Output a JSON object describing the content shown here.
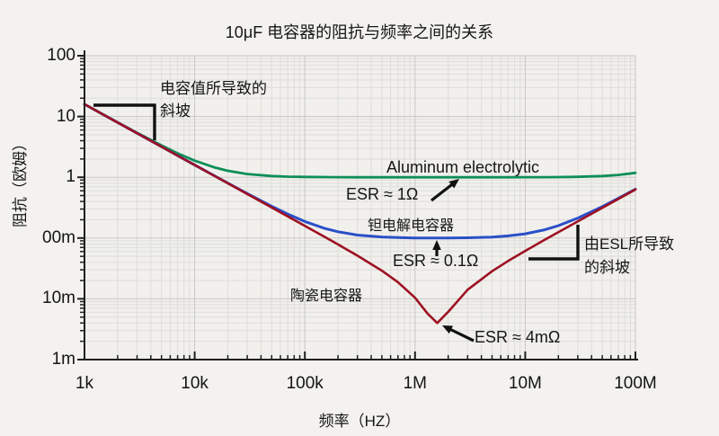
{
  "page": {
    "title": "10μF 电容器的阻抗与频率之间的关系"
  },
  "axes": {
    "x_label": "频率（HZ）",
    "y_label": "阻抗（欧姆）",
    "x_ticks": [
      "1k",
      "10k",
      "100k",
      "1M",
      "10M",
      "100M"
    ],
    "y_ticks": [
      "100",
      "10",
      "1",
      "00m",
      "10m",
      "1m"
    ]
  },
  "annotations": {
    "cap_slope_line1": "电容值所导致的",
    "cap_slope_line2": "斜坡",
    "esl_slope_line1": "由ESL所导致",
    "esl_slope_line2": "的斜坡",
    "aluminum_label": "Aluminum electrolytic",
    "tantalum_label": "钽电解电容器",
    "ceramic_label": "陶瓷电容器",
    "esr_aluminum": "ESR ≈ 1Ω",
    "esr_tantalum": "ESR ≈ 0.1Ω",
    "esr_ceramic": "ESR ≈ 4mΩ"
  },
  "colors": {
    "background": "#f3f2ef",
    "plot_background": "#f1f0ec",
    "grid_minor": "#deddd9",
    "grid_major": "#c9c7c3",
    "axis": "#1f1f1f",
    "annotation": "#111111",
    "aluminum": "#0e8f57",
    "tantalum": "#2a50c8",
    "ceramic": "#9e1022"
  },
  "chart_data": {
    "type": "line",
    "title": "10μF 电容器的阻抗与频率之间的关系",
    "xlabel": "频率（HZ）",
    "ylabel": "阻抗（欧姆）",
    "x_scale": "log",
    "y_scale": "log",
    "xlim": [
      1000,
      100000000
    ],
    "ylim": [
      0.001,
      100
    ],
    "grid": true,
    "x_hz": [
      1000,
      1500,
      2000,
      3000,
      5000,
      7000,
      10000,
      15000,
      20000,
      30000,
      50000,
      70000,
      100000,
      150000,
      200000,
      300000,
      500000,
      700000,
      1000000,
      1300000,
      1590000,
      2000000,
      3000000,
      5000000,
      7000000,
      10000000,
      15000000,
      20000000,
      30000000,
      50000000,
      70000000,
      100000000
    ],
    "series": [
      {
        "name": "Aluminum electrolytic",
        "esr_label": "ESR ≈ 1Ω",
        "esr_ohms": 1.0,
        "color": "#0e8f57",
        "values": [
          15.95,
          10.66,
          8.02,
          5.4,
          3.34,
          2.48,
          1.88,
          1.46,
          1.28,
          1.13,
          1.049,
          1.025,
          1.012,
          1.006,
          1.003,
          1.001,
          1.0004,
          1.0002,
          1.0001,
          1.0,
          1.0,
          1.0,
          1.0001,
          1.0004,
          1.0009,
          1.0019,
          1.0043,
          1.0078,
          1.0175,
          1.048,
          1.092,
          1.181
        ]
      },
      {
        "name": "钽电解电容器",
        "esr_label": "ESR ≈ 0.1Ω",
        "esr_ohms": 0.1,
        "color": "#2a50c8",
        "values": [
          15.92,
          10.61,
          7.96,
          5.31,
          3.185,
          2.276,
          1.595,
          1.066,
          0.802,
          0.54,
          0.333,
          0.248,
          0.187,
          0.145,
          0.127,
          0.112,
          0.104,
          0.102,
          0.1005,
          0.1001,
          0.1,
          0.1001,
          0.1009,
          0.1039,
          0.1084,
          0.1173,
          0.1366,
          0.1599,
          0.2129,
          0.3294,
          0.4508,
          0.6361
        ]
      },
      {
        "name": "陶瓷电容器",
        "esr_label": "ESR ≈ 4mΩ",
        "esr_ohms": 0.004,
        "color": "#9e1022",
        "values": [
          15.92,
          10.61,
          7.958,
          5.305,
          3.183,
          2.274,
          1.592,
          1.061,
          0.796,
          0.53,
          0.318,
          0.227,
          0.1586,
          0.1052,
          0.0784,
          0.0513,
          0.029,
          0.0188,
          0.0104,
          0.0057,
          0.004,
          0.0061,
          0.0141,
          0.0285,
          0.0419,
          0.0614,
          0.0933,
          0.1249,
          0.188,
          0.3139,
          0.4396,
          0.6282
        ]
      }
    ]
  }
}
